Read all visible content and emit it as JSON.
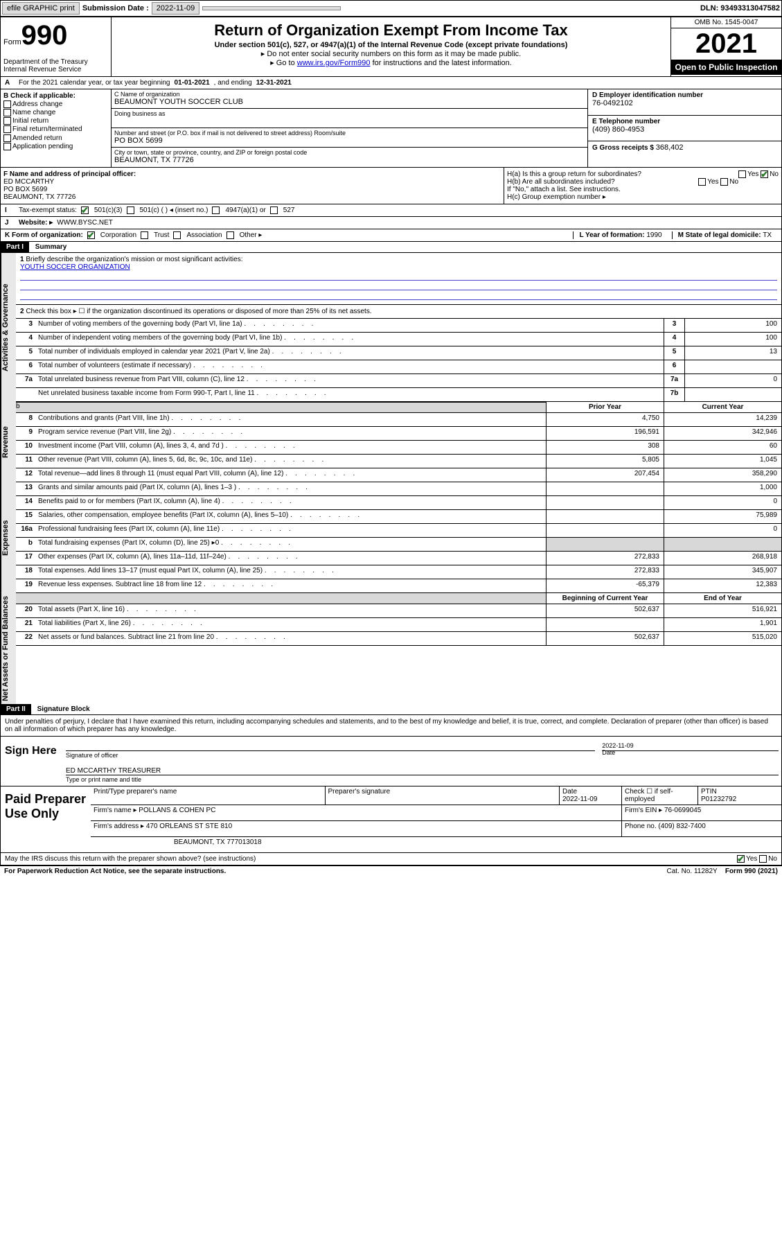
{
  "topbar": {
    "efile": "efile GRAPHIC print",
    "submission_label": "Submission Date :",
    "submission_date": "2022-11-09",
    "dln_label": "DLN:",
    "dln": "93493313047582"
  },
  "header": {
    "form_word": "Form",
    "form_num": "990",
    "dept": "Department of the Treasury Internal Revenue Service",
    "title": "Return of Organization Exempt From Income Tax",
    "sub": "Under section 501(c), 527, or 4947(a)(1) of the Internal Revenue Code (except private foundations)",
    "note1": "▸ Do not enter social security numbers on this form as it may be made public.",
    "note2_pre": "▸ Go to ",
    "note2_link": "www.irs.gov/Form990",
    "note2_post": " for instructions and the latest information.",
    "omb": "OMB No. 1545-0047",
    "year": "2021",
    "open": "Open to Public Inspection"
  },
  "period": {
    "text": "For the 2021 calendar year, or tax year beginning ",
    "begin": "01-01-2021",
    "mid": " , and ending ",
    "end": "12-31-2021"
  },
  "sectionB": {
    "label": "B Check if applicable:",
    "items": [
      "Address change",
      "Name change",
      "Initial return",
      "Final return/terminated",
      "Amended return",
      "Application pending"
    ]
  },
  "sectionC": {
    "name_lbl": "C Name of organization",
    "name": "BEAUMONT YOUTH SOCCER CLUB",
    "dba_lbl": "Doing business as",
    "dba": "",
    "addr_lbl": "Number and street (or P.O. box if mail is not delivered to street address)          Room/suite",
    "street": "PO BOX 5699",
    "city_lbl": "City or town, state or province, country, and ZIP or foreign postal code",
    "city": "BEAUMONT, TX  77726"
  },
  "sectionD": {
    "lbl": "D Employer identification number",
    "val": "76-0492102"
  },
  "sectionE": {
    "lbl": "E Telephone number",
    "val": "(409) 860-4953"
  },
  "sectionG": {
    "lbl": "G Gross receipts $",
    "val": "368,402"
  },
  "sectionF": {
    "lbl": "F Name and address of principal officer:",
    "name": "ED MCCARTHY",
    "street": "PO BOX 5699",
    "city": "BEAUMONT, TX  77726"
  },
  "sectionH": {
    "a": "H(a)  Is this a group return for subordinates?",
    "a_yes": "Yes",
    "a_no": "No",
    "b": "H(b)  Are all subordinates included?",
    "b_yes": "Yes",
    "b_no": "No",
    "b_note": "If \"No,\" attach a list. See instructions.",
    "c": "H(c)  Group exemption number ▸"
  },
  "rowI": {
    "lbl": "Tax-exempt status:",
    "o1": "501(c)(3)",
    "o2": "501(c) (   ) ◂ (insert no.)",
    "o3": "4947(a)(1) or",
    "o4": "527"
  },
  "rowJ": {
    "lbl": "Website: ▸",
    "val": "WWW.BYSC.NET"
  },
  "rowK": {
    "lbl": "K Form of organization:",
    "o1": "Corporation",
    "o2": "Trust",
    "o3": "Association",
    "o4": "Other ▸"
  },
  "rowL": {
    "lbl": "L Year of formation:",
    "val": "1990"
  },
  "rowM": {
    "lbl": "M State of legal domicile:",
    "val": "TX"
  },
  "part1": {
    "hdr": "Part I",
    "title": "Summary"
  },
  "sideTabs": {
    "gov": "Activities & Governance",
    "rev": "Revenue",
    "exp": "Expenses",
    "net": "Net Assets or Fund Balances"
  },
  "line1": {
    "lbl": "Briefly describe the organization's mission or most significant activities:",
    "val": "YOUTH SOCCER ORGANIZATION"
  },
  "line2": "Check this box ▸ ☐  if the organization discontinued its operations or disposed of more than 25% of its net assets.",
  "lines_gov": [
    {
      "n": "3",
      "d": "Number of voting members of the governing body (Part VI, line 1a)",
      "box": "3",
      "v": "100"
    },
    {
      "n": "4",
      "d": "Number of independent voting members of the governing body (Part VI, line 1b)",
      "box": "4",
      "v": "100"
    },
    {
      "n": "5",
      "d": "Total number of individuals employed in calendar year 2021 (Part V, line 2a)",
      "box": "5",
      "v": "13"
    },
    {
      "n": "6",
      "d": "Total number of volunteers (estimate if necessary)",
      "box": "6",
      "v": ""
    },
    {
      "n": "7a",
      "d": "Total unrelated business revenue from Part VIII, column (C), line 12",
      "box": "7a",
      "v": "0"
    },
    {
      "n": "",
      "d": "Net unrelated business taxable income from Form 990-T, Part I, line 11",
      "box": "7b",
      "v": ""
    }
  ],
  "col_hdr": {
    "prior": "Prior Year",
    "current": "Current Year",
    "beg": "Beginning of Current Year",
    "end": "End of Year"
  },
  "lines_rev": [
    {
      "n": "8",
      "d": "Contributions and grants (Part VIII, line 1h)",
      "p": "4,750",
      "c": "14,239"
    },
    {
      "n": "9",
      "d": "Program service revenue (Part VIII, line 2g)",
      "p": "196,591",
      "c": "342,946"
    },
    {
      "n": "10",
      "d": "Investment income (Part VIII, column (A), lines 3, 4, and 7d )",
      "p": "308",
      "c": "60"
    },
    {
      "n": "11",
      "d": "Other revenue (Part VIII, column (A), lines 5, 6d, 8c, 9c, 10c, and 11e)",
      "p": "5,805",
      "c": "1,045"
    },
    {
      "n": "12",
      "d": "Total revenue—add lines 8 through 11 (must equal Part VIII, column (A), line 12)",
      "p": "207,454",
      "c": "358,290"
    }
  ],
  "lines_exp": [
    {
      "n": "13",
      "d": "Grants and similar amounts paid (Part IX, column (A), lines 1–3 )",
      "p": "",
      "c": "1,000"
    },
    {
      "n": "14",
      "d": "Benefits paid to or for members (Part IX, column (A), line 4)",
      "p": "",
      "c": "0"
    },
    {
      "n": "15",
      "d": "Salaries, other compensation, employee benefits (Part IX, column (A), lines 5–10)",
      "p": "",
      "c": "75,989"
    },
    {
      "n": "16a",
      "d": "Professional fundraising fees (Part IX, column (A), line 11e)",
      "p": "",
      "c": "0"
    },
    {
      "n": "b",
      "d": "Total fundraising expenses (Part IX, column (D), line 25) ▸0",
      "p": "shade",
      "c": "shade"
    },
    {
      "n": "17",
      "d": "Other expenses (Part IX, column (A), lines 11a–11d, 11f–24e)",
      "p": "272,833",
      "c": "268,918"
    },
    {
      "n": "18",
      "d": "Total expenses. Add lines 13–17 (must equal Part IX, column (A), line 25)",
      "p": "272,833",
      "c": "345,907"
    },
    {
      "n": "19",
      "d": "Revenue less expenses. Subtract line 18 from line 12",
      "p": "-65,379",
      "c": "12,383"
    }
  ],
  "lines_net": [
    {
      "n": "20",
      "d": "Total assets (Part X, line 16)",
      "p": "502,637",
      "c": "516,921"
    },
    {
      "n": "21",
      "d": "Total liabilities (Part X, line 26)",
      "p": "",
      "c": "1,901"
    },
    {
      "n": "22",
      "d": "Net assets or fund balances. Subtract line 21 from line 20",
      "p": "502,637",
      "c": "515,020"
    }
  ],
  "part2": {
    "hdr": "Part II",
    "title": "Signature Block"
  },
  "penalties": "Under penalties of perjury, I declare that I have examined this return, including accompanying schedules and statements, and to the best of my knowledge and belief, it is true, correct, and complete. Declaration of preparer (other than officer) is based on all information of which preparer has any knowledge.",
  "sign": {
    "here": "Sign Here",
    "sig_lbl": "Signature of officer",
    "date": "2022-11-09",
    "date_lbl": "Date",
    "name": "ED MCCARTHY TREASURER",
    "name_lbl": "Type or print name and title"
  },
  "preparer": {
    "left": "Paid Preparer Use Only",
    "h1": "Print/Type preparer's name",
    "h2": "Preparer's signature",
    "h3": "Date",
    "h3v": "2022-11-09",
    "h4": "Check ☐ if self-employed",
    "h5": "PTIN",
    "h5v": "P01232792",
    "firm_lbl": "Firm's name    ▸",
    "firm": "POLLANS & COHEN PC",
    "ein_lbl": "Firm's EIN ▸",
    "ein": "76-0699045",
    "addr_lbl": "Firm's address ▸",
    "addr1": "470 ORLEANS ST STE 810",
    "addr2": "BEAUMONT, TX  777013018",
    "phone_lbl": "Phone no.",
    "phone": "(409) 832-7400"
  },
  "irs_discuss": {
    "q": "May the IRS discuss this return with the preparer shown above? (see instructions)",
    "yes": "Yes",
    "no": "No"
  },
  "footer": {
    "pra": "For Paperwork Reduction Act Notice, see the separate instructions.",
    "cat": "Cat. No. 11282Y",
    "form": "Form 990 (2021)"
  }
}
